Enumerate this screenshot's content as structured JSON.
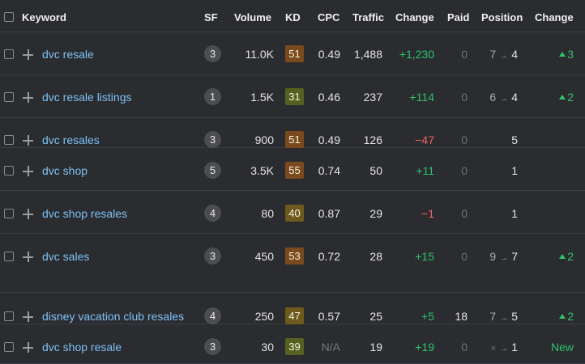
{
  "header": {
    "keyword": "Keyword",
    "sf": "SF",
    "volume": "Volume",
    "kd": "KD",
    "cpc": "CPC",
    "traffic": "Traffic",
    "change": "Change",
    "paid": "Paid",
    "position": "Position",
    "position_change": "Change"
  },
  "rows": [
    {
      "keyword": "dvc resale",
      "sf": "3",
      "volume": "11.0K",
      "kd": "51",
      "kd_color": "#7a4a1c",
      "cpc": "0.49",
      "traffic": "1,488",
      "change": "+1,230",
      "paid": "0",
      "pos_from": "7",
      "pos_to": "4",
      "pos_change": "3"
    },
    {
      "keyword": "dvc resale listings",
      "sf": "1",
      "volume": "1.5K",
      "kd": "31",
      "kd_color": "#566121",
      "cpc": "0.46",
      "traffic": "237",
      "change": "+114",
      "paid": "0",
      "pos_from": "6",
      "pos_to": "4",
      "pos_change": "2"
    },
    {
      "keyword": "dvc resales",
      "sf": "3",
      "volume": "900",
      "kd": "51",
      "kd_color": "#7a4a1c",
      "cpc": "0.49",
      "traffic": "126",
      "change": "−47",
      "paid": "0",
      "pos_from": "",
      "pos_to": "5",
      "pos_change": ""
    },
    {
      "keyword": "dvc shop",
      "sf": "5",
      "volume": "3.5K",
      "kd": "55",
      "kd_color": "#7a4a1c",
      "cpc": "0.74",
      "traffic": "50",
      "change": "+11",
      "paid": "0",
      "pos_from": "",
      "pos_to": "1",
      "pos_change": ""
    },
    {
      "keyword": "dvc shop resales",
      "sf": "4",
      "volume": "80",
      "kd": "40",
      "kd_color": "#6e5a1c",
      "cpc": "0.87",
      "traffic": "29",
      "change": "−1",
      "paid": "0",
      "pos_from": "",
      "pos_to": "1",
      "pos_change": ""
    },
    {
      "keyword": "dvc sales",
      "sf": "3",
      "volume": "450",
      "kd": "53",
      "kd_color": "#7a4a1c",
      "cpc": "0.72",
      "traffic": "28",
      "change": "+15",
      "paid": "0",
      "pos_from": "9",
      "pos_to": "7",
      "pos_change": "2"
    },
    {
      "keyword": "disney vacation club resales",
      "sf": "4",
      "volume": "250",
      "kd": "47",
      "kd_color": "#6e5a1c",
      "cpc": "0.57",
      "traffic": "25",
      "change": "+5",
      "paid": "18",
      "pos_from": "7",
      "pos_to": "5",
      "pos_change": "2"
    },
    {
      "keyword": "dvc shop resale",
      "sf": "3",
      "volume": "30",
      "kd": "39",
      "kd_color": "#566121",
      "cpc": "N/A",
      "traffic": "19",
      "change": "+19",
      "paid": "0",
      "pos_from": "×",
      "pos_to": "1",
      "pos_change": "New"
    }
  ],
  "colors": {
    "background": "#2b2c30",
    "link": "#7cc1f5",
    "positive": "#2cc36b",
    "negative": "#f0635f"
  }
}
